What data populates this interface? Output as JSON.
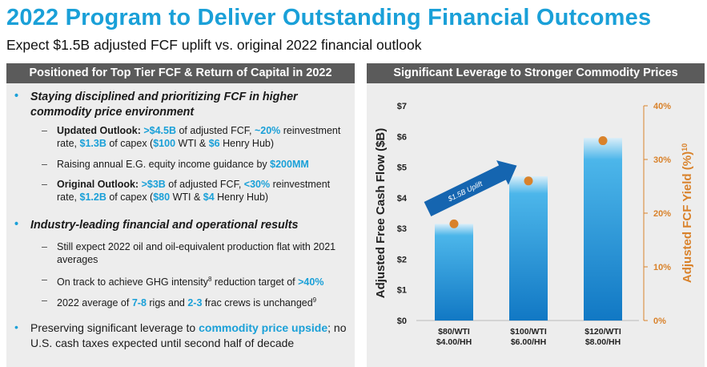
{
  "header": {
    "title": "2022 Program to Deliver Outstanding Financial Outcomes",
    "subtitle": "Expect $1.5B adjusted FCF uplift vs. original 2022 financial outlook"
  },
  "left_panel": {
    "heading": "Positioned for Top Tier FCF & Return of Capital in 2022",
    "bullet1": {
      "text": "Staying disciplined and prioritizing FCF in higher commodity price environment",
      "updated": {
        "label": "Updated Outlook:",
        "v1": ">$4.5B",
        "t1": " of adjusted FCF, ",
        "v2": "~20%",
        "t2": " reinvestment rate, ",
        "v3": "$1.3B",
        "t3": " of capex (",
        "v4": "$100",
        "t4": " WTI & ",
        "v5": "$6",
        "t5": " Henry Hub)"
      },
      "raising": {
        "t1": "Raising annual E.G. equity income guidance by ",
        "v1": "$200MM"
      },
      "original": {
        "label": "Original Outlook:",
        "v1": ">$3B",
        "t1": " of adjusted FCF, ",
        "v2": "<30%",
        "t2": " reinvestment rate, ",
        "v3": "$1.2B",
        "t3": " of capex (",
        "v4": "$80",
        "t4": " WTI & ",
        "v5": "$4",
        "t5": " Henry Hub)"
      }
    },
    "bullet2": {
      "text": "Industry-leading financial and operational results",
      "production": "Still expect 2022 oil and oil-equivalent production flat with 2021 averages",
      "ghg": {
        "t1": "On track to achieve GHG intensity",
        "sup": "8",
        "t2": " reduction target of ",
        "v1": ">40%"
      },
      "rigs": {
        "t1": "2022 average of ",
        "v1": "7-8",
        "t2": " rigs and ",
        "v2": "2-3",
        "t3": " frac crews is unchanged",
        "sup": "9"
      }
    },
    "bullet3": {
      "t1": "Preserving significant leverage to ",
      "v1": "commodity price upside",
      "t2": "; no U.S. cash taxes expected until second half of decade"
    }
  },
  "right_panel": {
    "heading": "Significant Leverage to Stronger Commodity Prices"
  },
  "chart_data": {
    "type": "bar",
    "categories": [
      [
        "$80/WTI",
        "$4.00/HH"
      ],
      [
        "$100/WTI",
        "$6.00/HH"
      ],
      [
        "$120/WTI",
        "$8.00/HH"
      ]
    ],
    "series": [
      {
        "name": "Adjusted Free Cash Flow ($B)",
        "values": [
          3.15,
          4.7,
          5.95
        ],
        "axis": "left",
        "color": "#1590d8"
      },
      {
        "name": "Adjusted FCF Yield (%)",
        "values": [
          18,
          26,
          33.5
        ],
        "axis": "right",
        "color": "#d9822b"
      }
    ],
    "ylabel": "Adjusted Free Cash Flow ($B)",
    "ylabel_right": "Adjusted FCF Yield (%)",
    "ylabel_right_sup": "10",
    "ylim": [
      0,
      7
    ],
    "ylim_right": [
      0,
      40
    ],
    "yticks": [
      "$0",
      "$1",
      "$2",
      "$3",
      "$4",
      "$5",
      "$6",
      "$7"
    ],
    "yticks_right": [
      "0%",
      "10%",
      "20%",
      "30%",
      "40%"
    ],
    "annotation": "$1.5B Uplift",
    "colors": {
      "axis_right": "#d9822b",
      "bar_top": "#d9eef9",
      "bar_bottom": "#1178c4",
      "arrow": "#1565b0"
    }
  }
}
